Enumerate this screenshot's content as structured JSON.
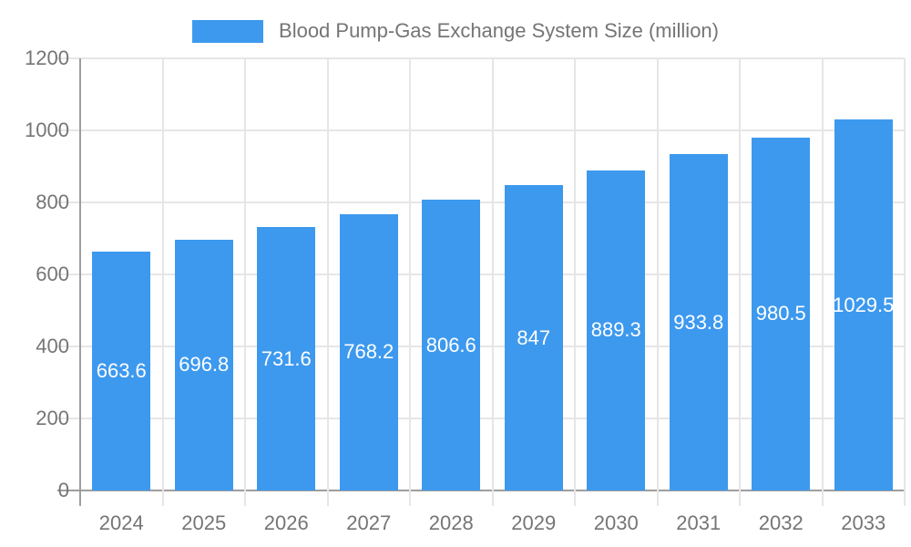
{
  "legend": {
    "label": "Blood Pump-Gas Exchange System Size (million)"
  },
  "colors": {
    "bar": "#3d99ee",
    "gridline": "#e6e6e6",
    "axis_line": "#9e9e9e",
    "axis_text": "#757575",
    "value_label": "#ffffff",
    "background": "#ffffff"
  },
  "chart_data": {
    "type": "bar",
    "title": "Blood Pump-Gas Exchange System Size (million)",
    "categories": [
      "2024",
      "2025",
      "2026",
      "2027",
      "2028",
      "2029",
      "2030",
      "2031",
      "2032",
      "2033"
    ],
    "values": [
      663.6,
      696.8,
      731.6,
      768.2,
      806.6,
      847,
      889.3,
      933.8,
      980.5,
      1029.5
    ],
    "value_labels": [
      "663.6",
      "696.8",
      "731.6",
      "768.2",
      "806.6",
      "847",
      "889.3",
      "933.8",
      "980.5",
      "1029.5"
    ],
    "xlabel": "",
    "ylabel": "",
    "ylim": [
      0,
      1200
    ],
    "ytick_step": 200,
    "yticks": [
      "0",
      "200",
      "400",
      "600",
      "800",
      "1000",
      "1200"
    ],
    "grid": true,
    "legend_position": "top-center",
    "value_label_position": "inside-center"
  }
}
